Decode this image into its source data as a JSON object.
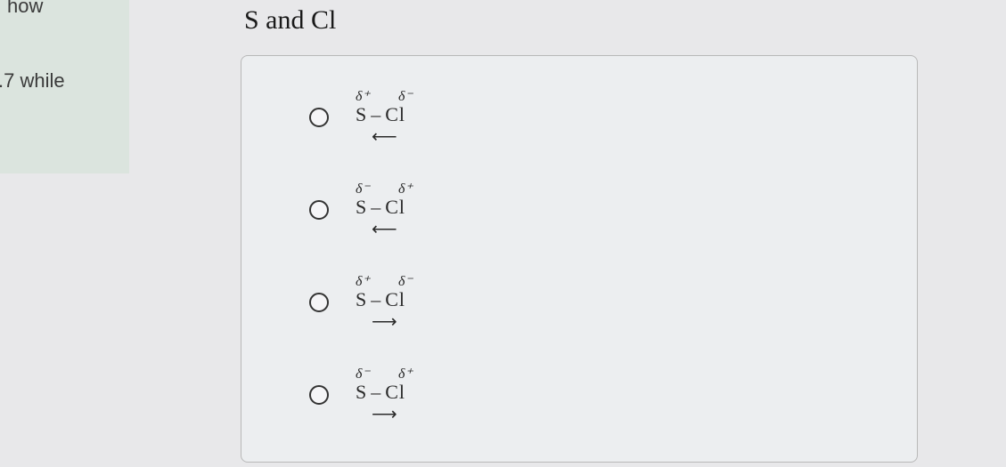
{
  "sidebar": {
    "fragment_top": "how",
    "fragment_bottom": ".7 while"
  },
  "question": {
    "title": "S and Cl"
  },
  "options": [
    {
      "left_charge": "δ⁺",
      "right_charge": "δ⁻",
      "atom_left": "S",
      "atom_right": "Cl",
      "arrow": "⟵"
    },
    {
      "left_charge": "δ⁻",
      "right_charge": "δ⁺",
      "atom_left": "S",
      "atom_right": "Cl",
      "arrow": "⟵"
    },
    {
      "left_charge": "δ⁺",
      "right_charge": "δ⁻",
      "atom_left": "S",
      "atom_right": "Cl",
      "arrow": "⟶"
    },
    {
      "left_charge": "δ⁻",
      "right_charge": "δ⁺",
      "atom_left": "S",
      "atom_right": "Cl",
      "arrow": "⟶"
    }
  ]
}
